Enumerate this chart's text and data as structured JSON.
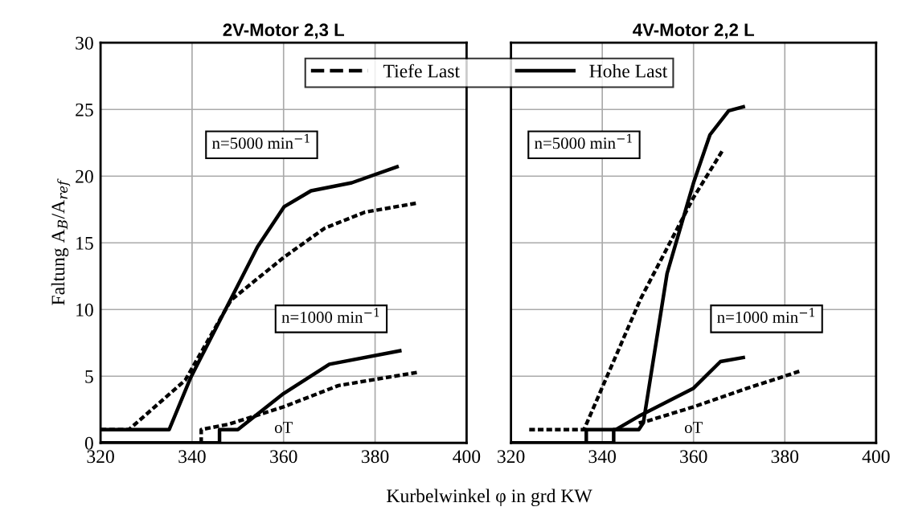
{
  "chart_data": [
    {
      "type": "line",
      "title": "2V-Motor 2,3 L",
      "xlabel": "Kurbelwinkel φ in grd KW",
      "ylabel": "Faltung A$_{B}$/A$_{ref}$",
      "xlim": [
        320,
        400
      ],
      "ylim": [
        0,
        30
      ],
      "xticks": [
        320,
        340,
        360,
        380,
        400
      ],
      "yticks": [
        0,
        5,
        10,
        15,
        20,
        25,
        30
      ],
      "grid": true,
      "legend": "top",
      "marker": "none",
      "annotations": [
        "n=5000 min$^{−1}$",
        "n=1000 min$^{−1}$",
        "oT"
      ],
      "series": [
        {
          "name": "Tiefe Last",
          "color": "#000000",
          "line_style": "dashed",
          "x": [
            320,
            326.2,
            338.5,
            348.5,
            360,
            369,
            377.8,
            389.5
          ],
          "values": [
            1,
            1,
            4.7,
            10.7,
            13.9,
            16.1,
            17.3,
            18.0
          ]
        },
        {
          "name": "Hohe Last",
          "color": "#000000",
          "line_style": "solid",
          "x": [
            320,
            335,
            339.7,
            354.3,
            360.1,
            366,
            374.9,
            384.8
          ],
          "values": [
            1,
            1,
            4.9,
            14.7,
            17.7,
            18.9,
            19.5,
            20.7
          ]
        },
        {
          "color": "#000000",
          "line_style": "dashed",
          "x": [
            342,
            342,
            348,
            360,
            372,
            389.5
          ],
          "values": [
            0,
            1,
            1.4,
            2.7,
            4.3,
            5.3
          ]
        },
        {
          "color": "#000000",
          "line_style": "solid",
          "x": [
            320,
            346,
            346,
            350,
            360,
            370,
            385.4
          ],
          "values": [
            0,
            0,
            1,
            1,
            3.7,
            5.9,
            6.9
          ]
        }
      ]
    },
    {
      "type": "line",
      "title": "4V-Motor 2,2 L",
      "xlim": [
        320,
        400
      ],
      "ylim": [
        0,
        30
      ],
      "xticks": [
        320,
        340,
        360,
        380,
        400
      ],
      "yticks": [
        0,
        5,
        10,
        15,
        20,
        25,
        30
      ],
      "grid": true,
      "tick_labels": "x",
      "marker": "none",
      "annotations": [
        "n=5000 min$^{−1}$",
        "n=1000 min$^{−1}$",
        "oT"
      ],
      "series": [
        {
          "color": "#000000",
          "line_style": "dashed",
          "x": [
            324,
            336,
            348.4,
            360,
            366.5
          ],
          "values": [
            1,
            1,
            10.8,
            18.4,
            22
          ]
        },
        {
          "color": "#000000",
          "line_style": "solid",
          "x": [
            320,
            342.5,
            342.5,
            348,
            349,
            354.2,
            360,
            363.6,
            367.7,
            370.9
          ],
          "values": [
            0,
            0,
            1,
            1,
            1.5,
            12.7,
            19.5,
            23.1,
            24.9,
            25.2
          ]
        },
        {
          "color": "#000000",
          "line_style": "dashed",
          "x": [
            348,
            349.5,
            360,
            371.8,
            383.5
          ],
          "values": [
            1.5,
            1.6,
            2.7,
            4.1,
            5.4
          ]
        },
        {
          "color": "#000000",
          "line_style": "solid",
          "x": [
            320,
            336.5,
            336.5,
            343,
            348,
            360,
            365.9,
            370.9
          ],
          "values": [
            0,
            0,
            1,
            1,
            2,
            4.1,
            6.1,
            6.4
          ]
        }
      ]
    }
  ]
}
